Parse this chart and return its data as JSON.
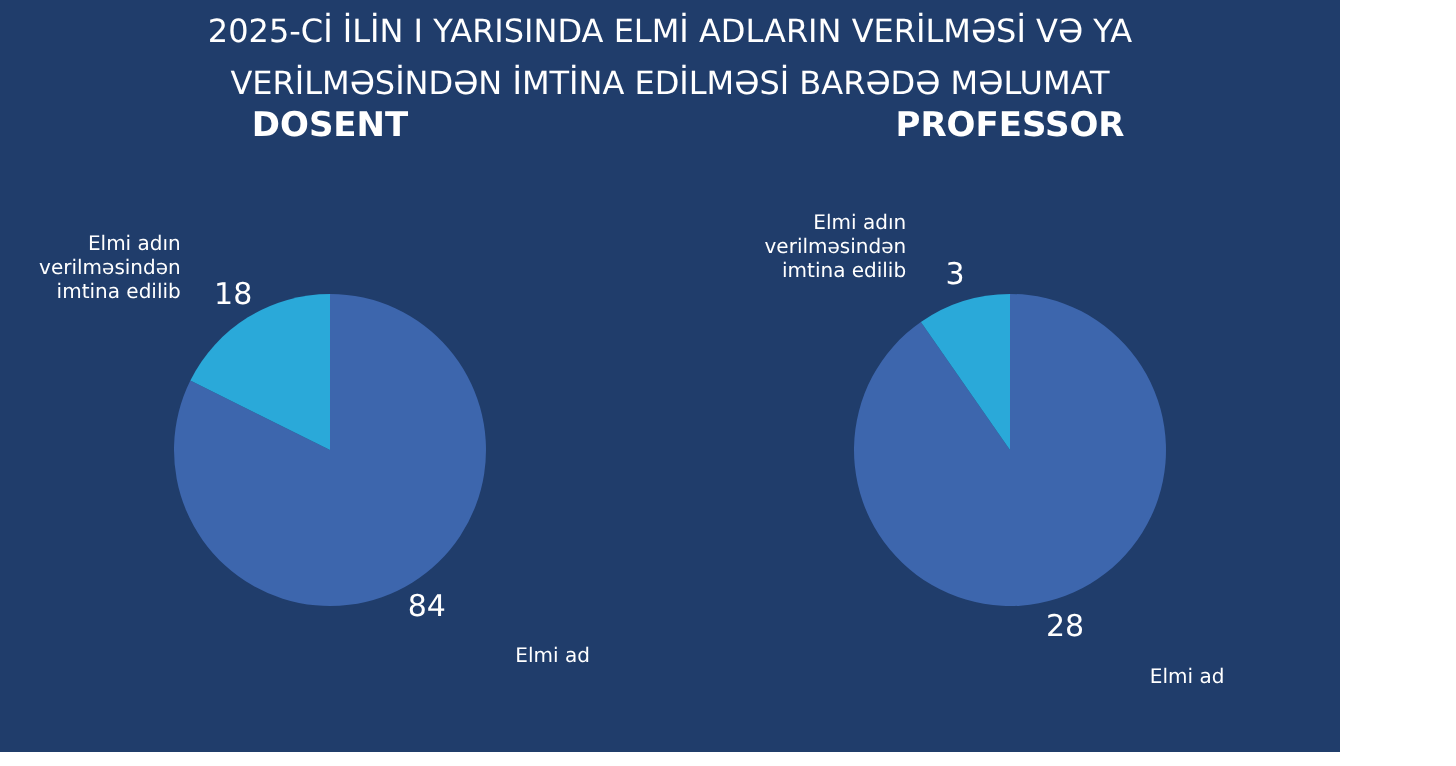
{
  "chart_data": [
    {
      "type": "pie",
      "title": "DOSENT",
      "categories": [
        "Elmi ad",
        "Elmi adın verilməsindən imtina edilib"
      ],
      "values": [
        84,
        18
      ],
      "colors": [
        "#3d66ad",
        "#2aa9d9"
      ],
      "data_labels": true,
      "legend": false,
      "annotations": [
        "2025-Cİ İLİN I YARISINDA ELMİ ADLARIN VERİLMƏSİ VƏ YA VERİLMƏSİNDƏN İMTİNA EDİLMƏSİ BARƏDƏ MƏLUMAT"
      ]
    },
    {
      "type": "pie",
      "title": "PROFESSOR",
      "categories": [
        "Elmi ad",
        "Elmi adın verilməsindən imtina edilib"
      ],
      "values": [
        28,
        3
      ],
      "colors": [
        "#3d66ad",
        "#2aa9d9"
      ],
      "data_labels": true,
      "legend": false
    }
  ]
}
